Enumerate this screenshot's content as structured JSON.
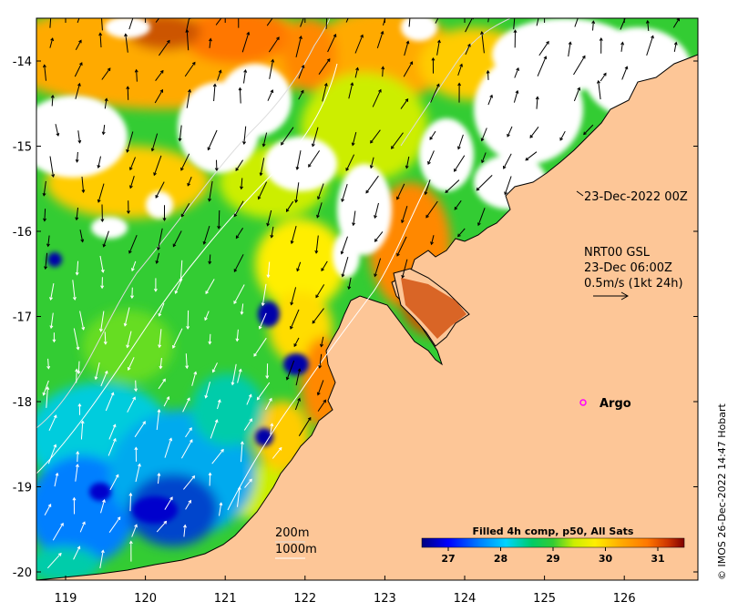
{
  "map": {
    "x_ticks": [
      "119",
      "120",
      "121",
      "122",
      "123",
      "124",
      "125",
      "126"
    ],
    "y_ticks": [
      "-14",
      "-15",
      "-16",
      "-17",
      "-18",
      "-19",
      "-20"
    ],
    "sst_annotation": "23-Dec-2022 00Z",
    "current_annotation": {
      "line1": "NRT00 GSL",
      "line2": "23-Dec 06:00Z",
      "line3": "0.5m/s (1kt 24h)"
    },
    "argo_label": "Argo",
    "contour_labels": [
      "200m",
      "1000m"
    ],
    "credit": "© IMOS 26-Dec-2022 14:47 Hobart",
    "colorbar": {
      "title": "Filled 4h comp, p50, All Sats",
      "ticks": [
        "27",
        "28",
        "29",
        "30",
        "31"
      ]
    },
    "colors": {
      "land": "#fdc697",
      "cloud": "#ffffff",
      "ramp": [
        "#00007f",
        "#0000ff",
        "#007fff",
        "#00d4ff",
        "#00cc66",
        "#33cc33",
        "#ccee00",
        "#ffee00",
        "#ffaa00",
        "#ff7700",
        "#cc3300",
        "#7f0000"
      ]
    }
  }
}
